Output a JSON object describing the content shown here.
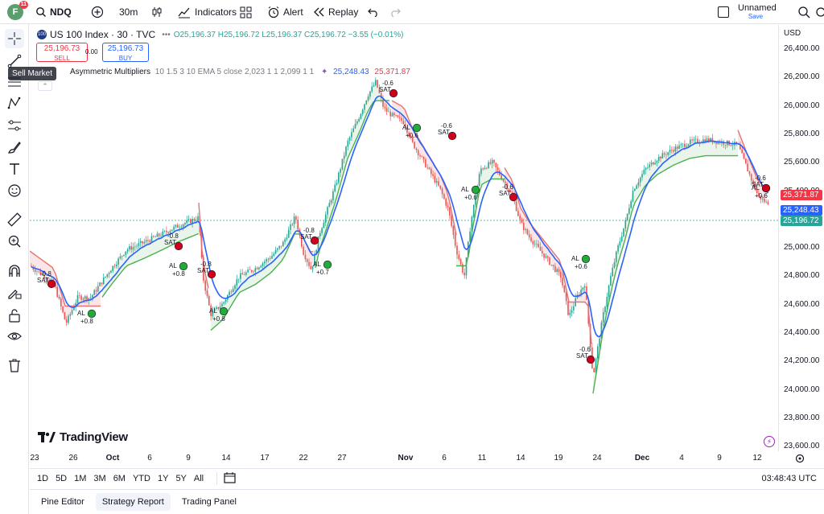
{
  "toolbar": {
    "avatar_letter": "F",
    "avatar_badge": "11",
    "symbol": "NDQ",
    "interval": "30m",
    "indicators_label": "Indicators",
    "alert_label": "Alert",
    "replay_label": "Replay",
    "layout_name": "Unnamed",
    "save_label": "Save"
  },
  "legend": {
    "title": "US 100 Index · 30 · TVC",
    "ohlc": "O25,196.37 H25,196.72 L25,196.37 C25,196.72 −3.55 (−0.01%)",
    "sell_price": "25,196.73",
    "sell_label": "SELL",
    "spread": "0.00",
    "buy_price": "25,196.73",
    "buy_label": "BUY",
    "indicator_name": "Asymmetric Multipliers",
    "indicator_params": "10 1.5 3 10 EMA 5 close 2,023 1 1 2,099 1 1",
    "indicator_val1": "25,248.43",
    "indicator_val2": "25,371.87",
    "tooltip": "Sell Market"
  },
  "price_axis": {
    "currency": "USD",
    "ticks": [
      "26,400.00",
      "26,200.00",
      "26,000.00",
      "25,800.00",
      "25,600.00",
      "25,400.00",
      "25,200.00",
      "25,000.00",
      "24,800.00",
      "24,600.00",
      "24,400.00",
      "24,200.00",
      "24,000.00",
      "23,800.00",
      "23,600.00"
    ],
    "tag_red": "25,371.87",
    "tag_blue": "25,248.43",
    "tag_green": "25,196.72"
  },
  "time_axis": {
    "ticks": [
      "23",
      "26",
      "Oct",
      "6",
      "9",
      "14",
      "17",
      "22",
      "27",
      "Nov",
      "6",
      "11",
      "14",
      "19",
      "24",
      "Dec",
      "4",
      "9",
      "12"
    ]
  },
  "range_buttons": [
    "1D",
    "5D",
    "1M",
    "3M",
    "6M",
    "YTD",
    "1Y",
    "5Y",
    "All"
  ],
  "clock": "03:48:43 UTC",
  "bottom_tabs": [
    "Pine Editor",
    "Strategy Report",
    "Trading Panel"
  ],
  "watermark": "TradingView",
  "colors": {
    "up": "#26a69a",
    "down": "#ef5350",
    "ema": "#2962ff",
    "band_green": "#4caf50",
    "band_red": "#e57373",
    "buy_dot": "#22ab38",
    "sell_dot": "#d0021b"
  },
  "signals": [
    {
      "type": "SAT",
      "label": "-0.8"
    },
    {
      "type": "AL",
      "label": "+0.8"
    },
    {
      "type": "SAT",
      "label": "-0.8"
    },
    {
      "type": "AL",
      "label": "+0.8"
    },
    {
      "type": "SAT",
      "label": "-0.8"
    },
    {
      "type": "AL",
      "label": "+0.8"
    },
    {
      "type": "SAT",
      "label": "-0.8"
    },
    {
      "type": "AL",
      "label": "+0.7"
    },
    {
      "type": "SAT",
      "label": "-0.6"
    },
    {
      "type": "AL",
      "label": "+0.6"
    },
    {
      "type": "SAT",
      "label": "-0.6"
    },
    {
      "type": "AL",
      "label": "+0.6"
    },
    {
      "type": "SAT",
      "label": "-0.6"
    },
    {
      "type": "AL",
      "label": "+0.6"
    },
    {
      "type": "SAT",
      "label": "-0.6"
    },
    {
      "type": "AL",
      "label": "+0.6"
    },
    {
      "type": "SAT",
      "label": "-0.6"
    }
  ]
}
